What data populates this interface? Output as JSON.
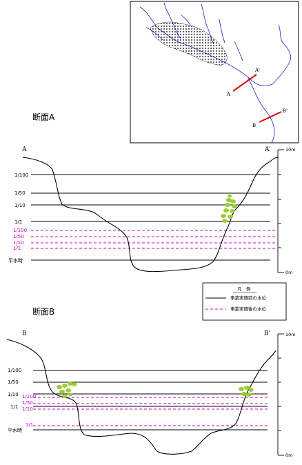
{
  "section_a": {
    "title": "断面A",
    "left_end": "A",
    "right_end": "A'",
    "scale_top": "10m",
    "scale_bottom": "0m",
    "levels_before": [
      {
        "label": "1/100"
      },
      {
        "label": "1/50"
      },
      {
        "label": "1/10"
      },
      {
        "label": "1/1"
      }
    ],
    "levels_after": [
      {
        "label": "1/100"
      },
      {
        "label": "1/50"
      },
      {
        "label": "1/10"
      },
      {
        "label": "1/1"
      }
    ],
    "normal_level": "平水時"
  },
  "section_b": {
    "title": "断面B",
    "left_end": "B",
    "right_end": "B'",
    "scale_top": "10m",
    "scale_bottom": "0m",
    "levels_before": [
      {
        "label": "1/100"
      },
      {
        "label": "1/50"
      },
      {
        "label": "1/10"
      },
      {
        "label": "1/1"
      }
    ],
    "levels_after": [
      {
        "label": "1/100"
      },
      {
        "label": "1/50"
      },
      {
        "label": "1/10"
      },
      {
        "label": "1/1"
      }
    ],
    "normal_level": "平水時"
  },
  "legend": {
    "title": "凡　例",
    "before": "事業実施前の水位",
    "after": "事業実施後の水位"
  },
  "map": {
    "line_a_start": "A",
    "line_a_end": "A'",
    "line_b_start": "B",
    "line_b_end": "B'"
  },
  "colors": {
    "before_line": "#000000",
    "after_line": "#cc00cc",
    "map_river": "#0000cc",
    "section_line": "#ff0000",
    "vegetation": "#9acd32"
  }
}
